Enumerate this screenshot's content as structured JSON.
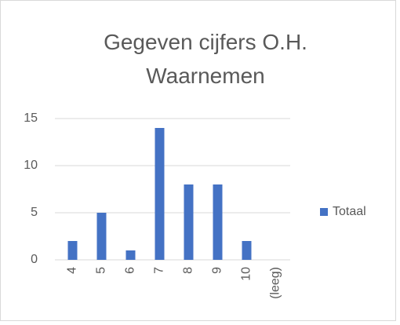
{
  "chart_data": {
    "type": "bar",
    "title": "Gegeven cijfers O.H. Waarnemen",
    "categories": [
      "4",
      "5",
      "6",
      "7",
      "8",
      "9",
      "10",
      "(leeg)"
    ],
    "series": [
      {
        "name": "Totaal",
        "color": "#4472c4",
        "values": [
          2,
          5,
          1,
          14,
          8,
          8,
          2,
          null
        ]
      }
    ],
    "ylim": [
      0,
      15
    ],
    "yticks": [
      0,
      5,
      10,
      15
    ],
    "grid": true,
    "legend": "right"
  }
}
